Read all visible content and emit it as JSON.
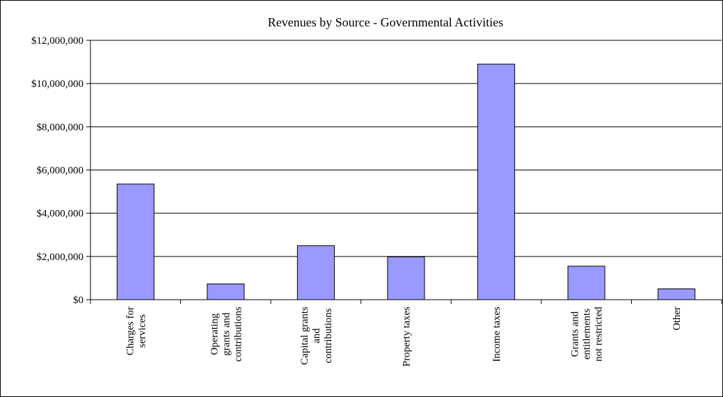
{
  "chart_data": {
    "type": "bar",
    "title": "Revenues by Source - Governmental Activities",
    "xlabel": "",
    "ylabel": "",
    "ylim": [
      0,
      12000000
    ],
    "grid": true,
    "legend": "none",
    "y_tick_labels": [
      "$0",
      "$2,000,000",
      "$4,000,000",
      "$6,000,000",
      "$8,000,000",
      "$10,000,000",
      "$12,000,000"
    ],
    "categories": [
      [
        "Charges for",
        "services"
      ],
      [
        "Operating",
        "grants and",
        "contributions"
      ],
      [
        "Capital grants",
        "and",
        "contributions"
      ],
      [
        "Property taxes"
      ],
      [
        "Income taxes"
      ],
      [
        "Grants and",
        "entitlements",
        "not restricted"
      ],
      [
        "Other"
      ]
    ],
    "values": [
      5350000,
      730000,
      2500000,
      1980000,
      10900000,
      1550000,
      500000
    ]
  },
  "colors": {
    "bar_fill": "#9999ff",
    "bar_stroke": "#000000",
    "gridline": "#000000",
    "background": "#ffffff"
  }
}
